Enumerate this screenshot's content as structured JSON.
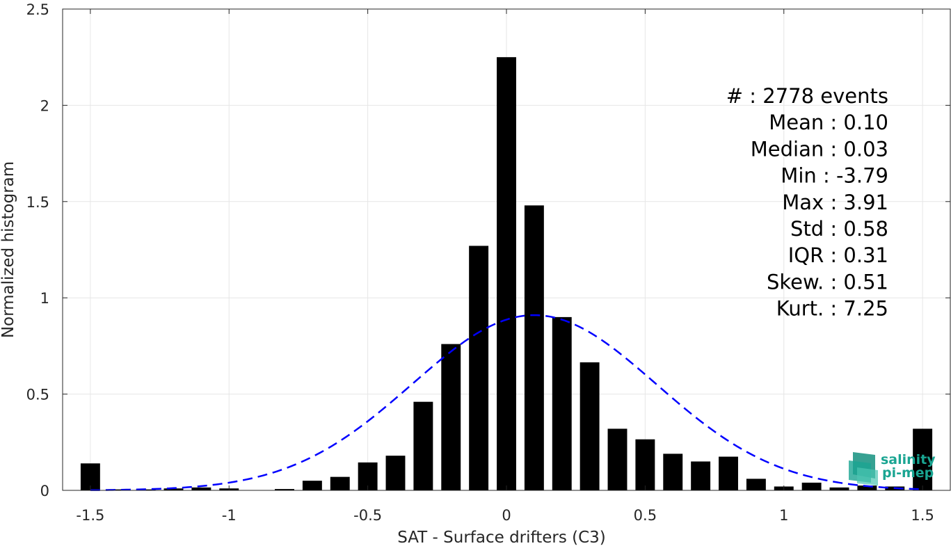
{
  "chart_data": {
    "type": "bar",
    "xlabel": "SAT - Surface drifters (C3)",
    "ylabel": "Normalized histogram",
    "xlim": [
      -1.6,
      1.6
    ],
    "ylim": [
      0,
      2.5
    ],
    "xticks": [
      "-1.5",
      "-1",
      "-0.5",
      "0",
      "0.5",
      "1",
      "1.5"
    ],
    "yticks": [
      "0",
      "0.5",
      "1",
      "1.5",
      "2",
      "2.5"
    ],
    "grid": true,
    "bar_width": 0.07,
    "x": [
      -1.5,
      -1.4,
      -1.3,
      -1.2,
      -1.1,
      -1.0,
      -0.9,
      -0.8,
      -0.7,
      -0.6,
      -0.5,
      -0.4,
      -0.3,
      -0.2,
      -0.1,
      0.0,
      0.1,
      0.2,
      0.3,
      0.4,
      0.5,
      0.6,
      0.7,
      0.8,
      0.9,
      1.0,
      1.1,
      1.2,
      1.3,
      1.4,
      1.5
    ],
    "values": [
      0.14,
      0.005,
      0.005,
      0.01,
      0.015,
      0.01,
      0.0,
      0.007,
      0.05,
      0.07,
      0.145,
      0.18,
      0.46,
      0.76,
      1.27,
      2.25,
      1.48,
      0.9,
      0.665,
      0.32,
      0.265,
      0.19,
      0.15,
      0.175,
      0.06,
      0.02,
      0.04,
      0.015,
      0.025,
      0.02,
      0.32
    ],
    "bar_color": "#000000",
    "fit": {
      "type": "normal",
      "mean": 0.1,
      "std": 0.44,
      "peak": 0.91,
      "color": "#0000ff",
      "style": "dashed"
    }
  },
  "stats": [
    "#  : 2778 events",
    "Mean : 0.10",
    "Median : 0.03",
    "Min : -3.79",
    "Max : 3.91",
    "Std : 0.58",
    "IQR : 0.31",
    "Skew. : 0.51",
    "Kurt. : 7.25"
  ],
  "logo": {
    "line1": "salinity",
    "line2": "pi-mep",
    "color": "#1aa592"
  }
}
